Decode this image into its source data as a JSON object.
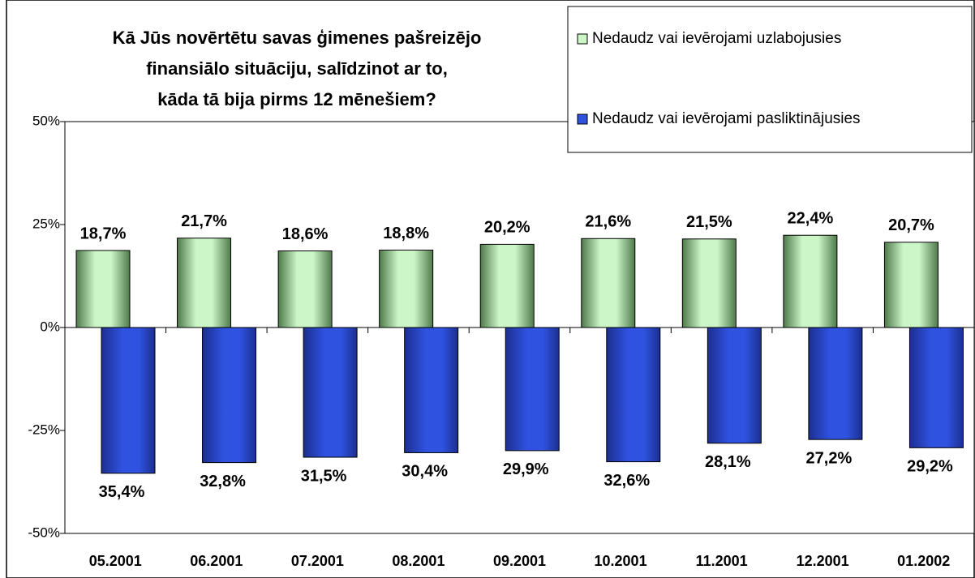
{
  "chart_data": {
    "type": "bar",
    "title": [
      "Kā Jūs novērtētu savas ģimenes pašreizējo",
      "finansiālo situāciju, salīdzinot ar to,",
      "kāda tā bija pirms 12 mēnešiem?"
    ],
    "categories": [
      "05.2001",
      "06.2001",
      "07.2001",
      "08.2001",
      "09.2001",
      "10.2001",
      "11.2001",
      "12.2001",
      "01.2002"
    ],
    "series": [
      {
        "name": "Nedaudz vai ievērojami uzlabojusies",
        "color": "#ccf5c8",
        "values": [
          18.7,
          21.7,
          18.6,
          18.8,
          20.2,
          21.6,
          21.5,
          22.4,
          20.7
        ],
        "value_labels": [
          "18,7%",
          "21,7%",
          "18,6%",
          "18,8%",
          "20,2%",
          "21,6%",
          "21,5%",
          "22,4%",
          "20,7%"
        ]
      },
      {
        "name": "Nedaudz vai ievērojami pasliktinājusies",
        "color": "#2f52e0",
        "values": [
          -35.4,
          -32.8,
          -31.5,
          -30.4,
          -29.9,
          -32.6,
          -28.1,
          -27.2,
          -29.2
        ],
        "value_labels": [
          "35,4%",
          "32,8%",
          "31,5%",
          "30,4%",
          "29,9%",
          "32,6%",
          "28,1%",
          "27,2%",
          "29,2%"
        ]
      }
    ],
    "ylim": [
      -50,
      50
    ],
    "yticks": [
      {
        "value": -50,
        "label": "-50%"
      },
      {
        "value": -25,
        "label": "-25%"
      },
      {
        "value": 0,
        "label": "0%"
      },
      {
        "value": 25,
        "label": "25%"
      },
      {
        "value": 50,
        "label": "50%"
      }
    ],
    "legend": "top-right"
  }
}
